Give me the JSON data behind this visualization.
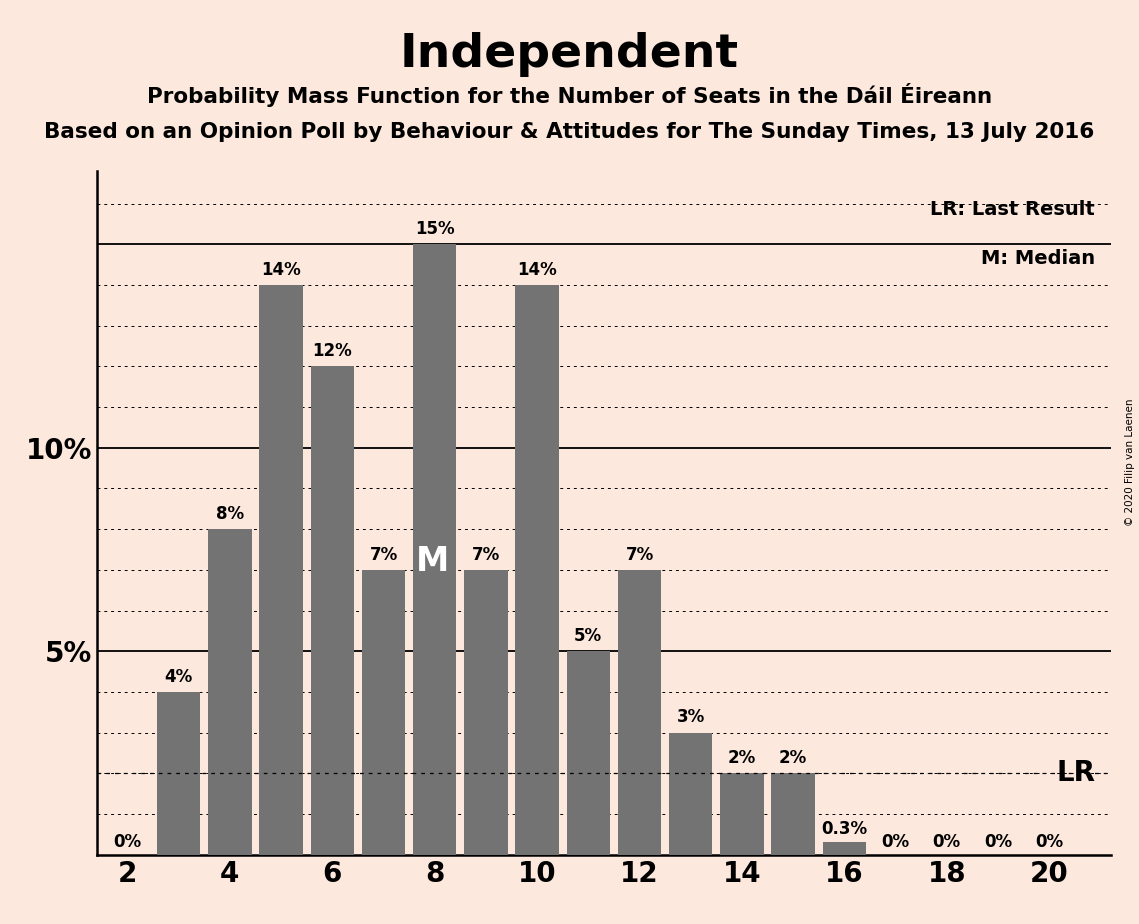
{
  "title": "Independent",
  "subtitle1": "Probability Mass Function for the Number of Seats in the Dáil Éireann",
  "subtitle2": "Based on an Opinion Poll by Behaviour & Attitudes for The Sunday Times, 13 July 2016",
  "copyright": "© 2020 Filip van Laenen",
  "seats": [
    2,
    3,
    4,
    5,
    6,
    7,
    8,
    9,
    10,
    11,
    12,
    13,
    14,
    15,
    16,
    17,
    18,
    19,
    20
  ],
  "probabilities": [
    0,
    4,
    8,
    14,
    12,
    7,
    15,
    7,
    14,
    5,
    7,
    3,
    2,
    2,
    0.3,
    0,
    0,
    0,
    0
  ],
  "bar_color": "#737373",
  "background_color": "#fce8dc",
  "median_seat": 8,
  "lr_value": 2.0,
  "lr_label": "LR",
  "median_label": "M",
  "xlim": [
    1.4,
    21.2
  ],
  "ylim": [
    0,
    16.8
  ],
  "xtick_positions": [
    2,
    4,
    6,
    8,
    10,
    12,
    14,
    16,
    18,
    20
  ],
  "xticklabels": [
    "2",
    "4",
    "6",
    "8",
    "10",
    "12",
    "14",
    "16",
    "18",
    "20"
  ],
  "ytick_positions": [
    5,
    10
  ],
  "ytick_labels": [
    "5%",
    "10%"
  ],
  "bar_width": 0.85
}
